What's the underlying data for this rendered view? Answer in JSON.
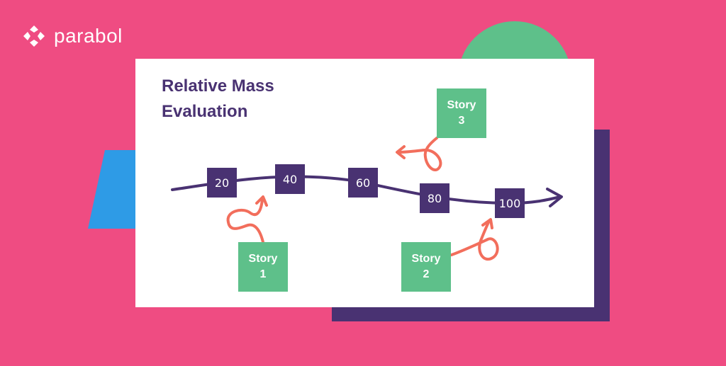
{
  "brand": {
    "name": "parabol",
    "logo_icon": "parabol-logo-icon"
  },
  "card": {
    "title_line1": "Relative Mass",
    "title_line2": "Evaluation"
  },
  "scale": [
    {
      "label": "20"
    },
    {
      "label": "40"
    },
    {
      "label": "60"
    },
    {
      "label": "80"
    },
    {
      "label": "100"
    }
  ],
  "stories": [
    {
      "line1": "Story",
      "line2": "1"
    },
    {
      "line1": "Story",
      "line2": "2"
    },
    {
      "line1": "Story",
      "line2": "3"
    }
  ],
  "colors": {
    "background": "#EF4C82",
    "card": "#FFFFFF",
    "purple": "#493272",
    "green": "#5EC08A",
    "blue": "#2E9BE6",
    "coral": "#F26E5C"
  }
}
